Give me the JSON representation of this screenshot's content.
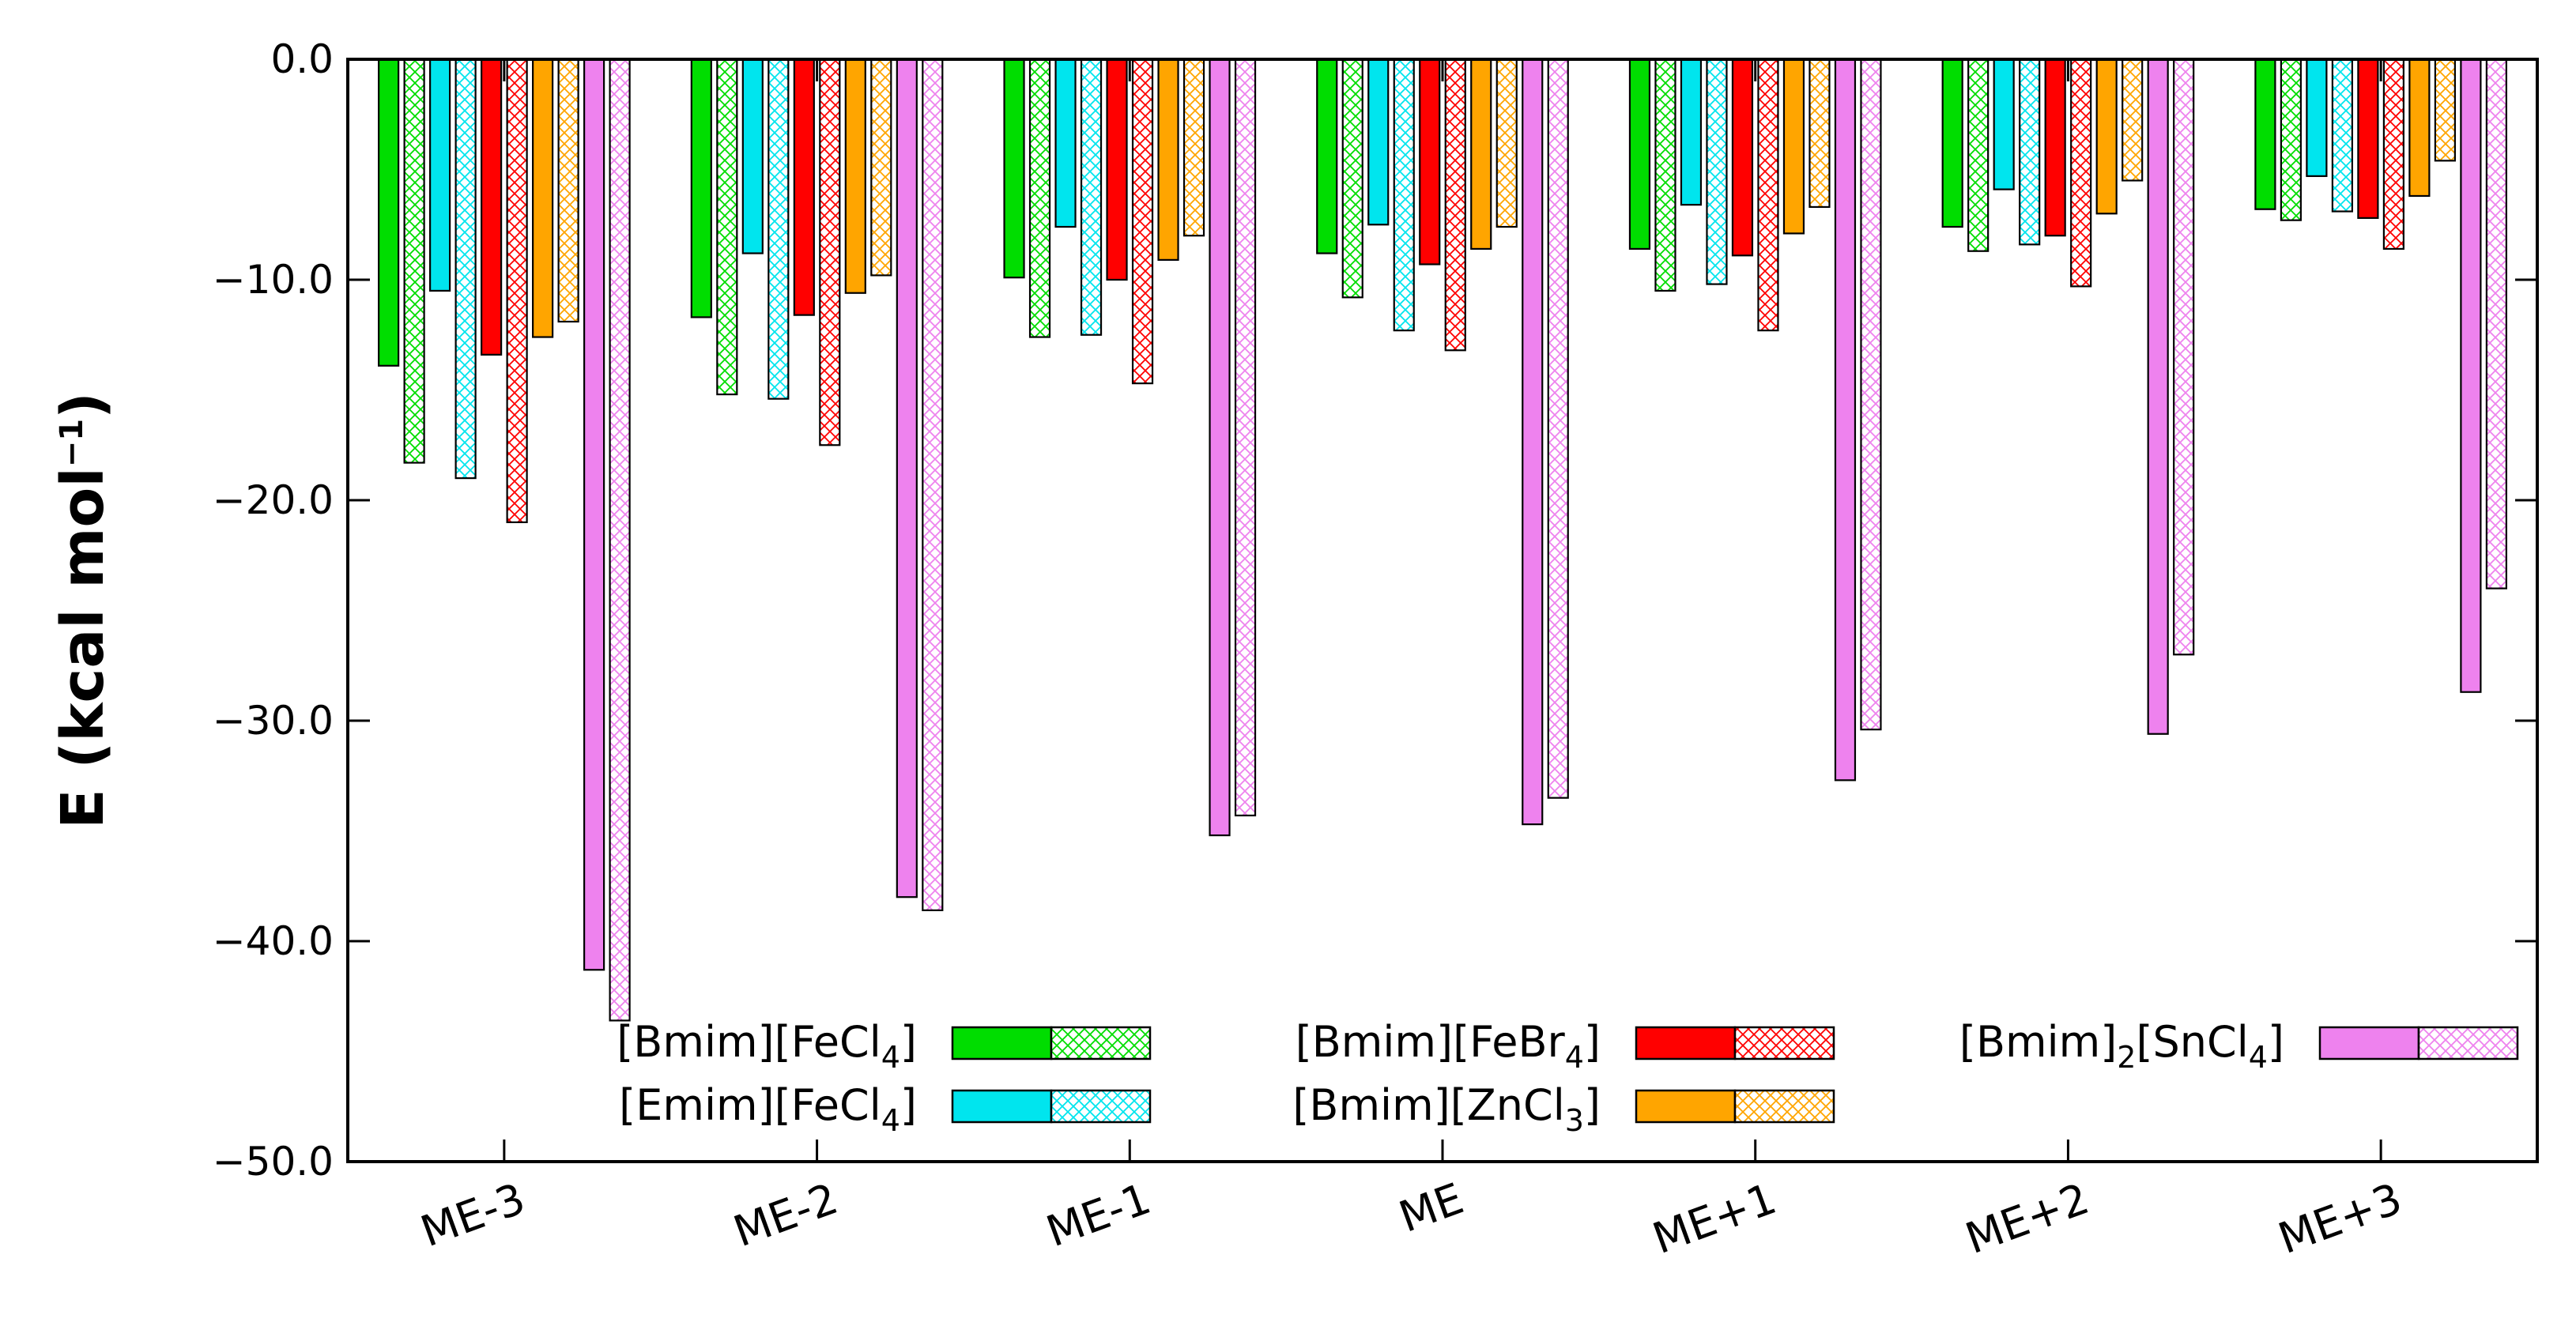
{
  "chart_data": {
    "type": "bar",
    "title": "",
    "xlabel": "",
    "ylabel": {
      "main": "E (kcal mol",
      "sup": "−1",
      "close": ")"
    },
    "ylim": [
      -50,
      0
    ],
    "yticks": [
      0,
      -10,
      -20,
      -30,
      -40,
      -50
    ],
    "ytick_labels": [
      "0.0",
      "−10.0",
      "−20.0",
      "−30.0",
      "−40.0",
      "−50.0"
    ],
    "categories": [
      "ME-3",
      "ME-2",
      "ME-1",
      "ME",
      "ME+1",
      "ME+2",
      "ME+3"
    ],
    "series": [
      {
        "name": "[Bmim][FeCl4] (solid)",
        "ionic_liquid": "[Bmim][FeCl4]",
        "fill": "solid",
        "color": "#00dd00",
        "values": [
          -13.9,
          -11.7,
          -9.9,
          -8.8,
          -8.6,
          -7.6,
          -6.8
        ]
      },
      {
        "name": "[Bmim][FeCl4] (hatched)",
        "ionic_liquid": "[Bmim][FeCl4]",
        "fill": "hatched",
        "color": "#00dd00",
        "values": [
          -18.3,
          -15.2,
          -12.6,
          -10.8,
          -10.5,
          -8.7,
          -7.3
        ]
      },
      {
        "name": "[Emim][FeCl4] (solid)",
        "ionic_liquid": "[Emim][FeCl4]",
        "fill": "solid",
        "color": "#00e5ee",
        "values": [
          -10.5,
          -8.8,
          -7.6,
          -7.5,
          -6.6,
          -5.9,
          -5.3
        ]
      },
      {
        "name": "[Emim][FeCl4] (hatched)",
        "ionic_liquid": "[Emim][FeCl4]",
        "fill": "hatched",
        "color": "#00e5ee",
        "values": [
          -19.0,
          -15.4,
          -12.5,
          -12.3,
          -10.2,
          -8.4,
          -6.9
        ]
      },
      {
        "name": "[Bmim][FeBr4] (solid)",
        "ionic_liquid": "[Bmim][FeBr4]",
        "fill": "solid",
        "color": "#ff0000",
        "values": [
          -13.4,
          -11.6,
          -10.0,
          -9.3,
          -8.9,
          -8.0,
          -7.2
        ]
      },
      {
        "name": "[Bmim][FeBr4] (hatched)",
        "ionic_liquid": "[Bmim][FeBr4]",
        "fill": "hatched",
        "color": "#ff0000",
        "values": [
          -21.0,
          -17.5,
          -14.7,
          -13.2,
          -12.3,
          -10.3,
          -8.6
        ]
      },
      {
        "name": "[Bmim][ZnCl3] (solid)",
        "ionic_liquid": "[Bmim][ZnCl3]",
        "fill": "solid",
        "color": "#ffa500",
        "values": [
          -12.6,
          -10.6,
          -9.1,
          -8.6,
          -7.9,
          -7.0,
          -6.2
        ]
      },
      {
        "name": "[Bmim][ZnCl3] (hatched)",
        "ionic_liquid": "[Bmim][ZnCl3]",
        "fill": "hatched",
        "color": "#ffa500",
        "values": [
          -11.9,
          -9.8,
          -8.0,
          -7.6,
          -6.7,
          -5.5,
          -4.6
        ]
      },
      {
        "name": "[Bmim]2[SnCl4] (solid)",
        "ionic_liquid": "[Bmim]2[SnCl4]",
        "fill": "solid",
        "color": "#ee82ee",
        "values": [
          -41.3,
          -38.0,
          -35.2,
          -34.7,
          -32.7,
          -30.6,
          -28.7
        ]
      },
      {
        "name": "[Bmim]2[SnCl4] (hatched)",
        "ionic_liquid": "[Bmim]2[SnCl4]",
        "fill": "hatched",
        "color": "#ee82ee",
        "values": [
          -43.6,
          -38.6,
          -34.3,
          -33.5,
          -30.4,
          -27.0,
          -24.0
        ]
      }
    ],
    "legend": {
      "placement": "bottom-inside",
      "entries": [
        {
          "label": "[Bmim][FeCl",
          "sub": "4",
          "tail": "]",
          "color": "#00dd00"
        },
        {
          "label": "[Emim][FeCl",
          "sub": "4",
          "tail": "]",
          "color": "#00e5ee"
        },
        {
          "label": "[Bmim][FeBr",
          "sub": "4",
          "tail": "]",
          "color": "#ff0000"
        },
        {
          "label": "[Bmim][ZnCl",
          "sub": "3",
          "tail": "]",
          "color": "#ffa500"
        },
        {
          "label": "[Bmim]",
          "sub": "2",
          "tail": "[SnCl",
          "sub2": "4",
          "tail2": "]",
          "color": "#ee82ee"
        }
      ]
    },
    "grid": false
  }
}
